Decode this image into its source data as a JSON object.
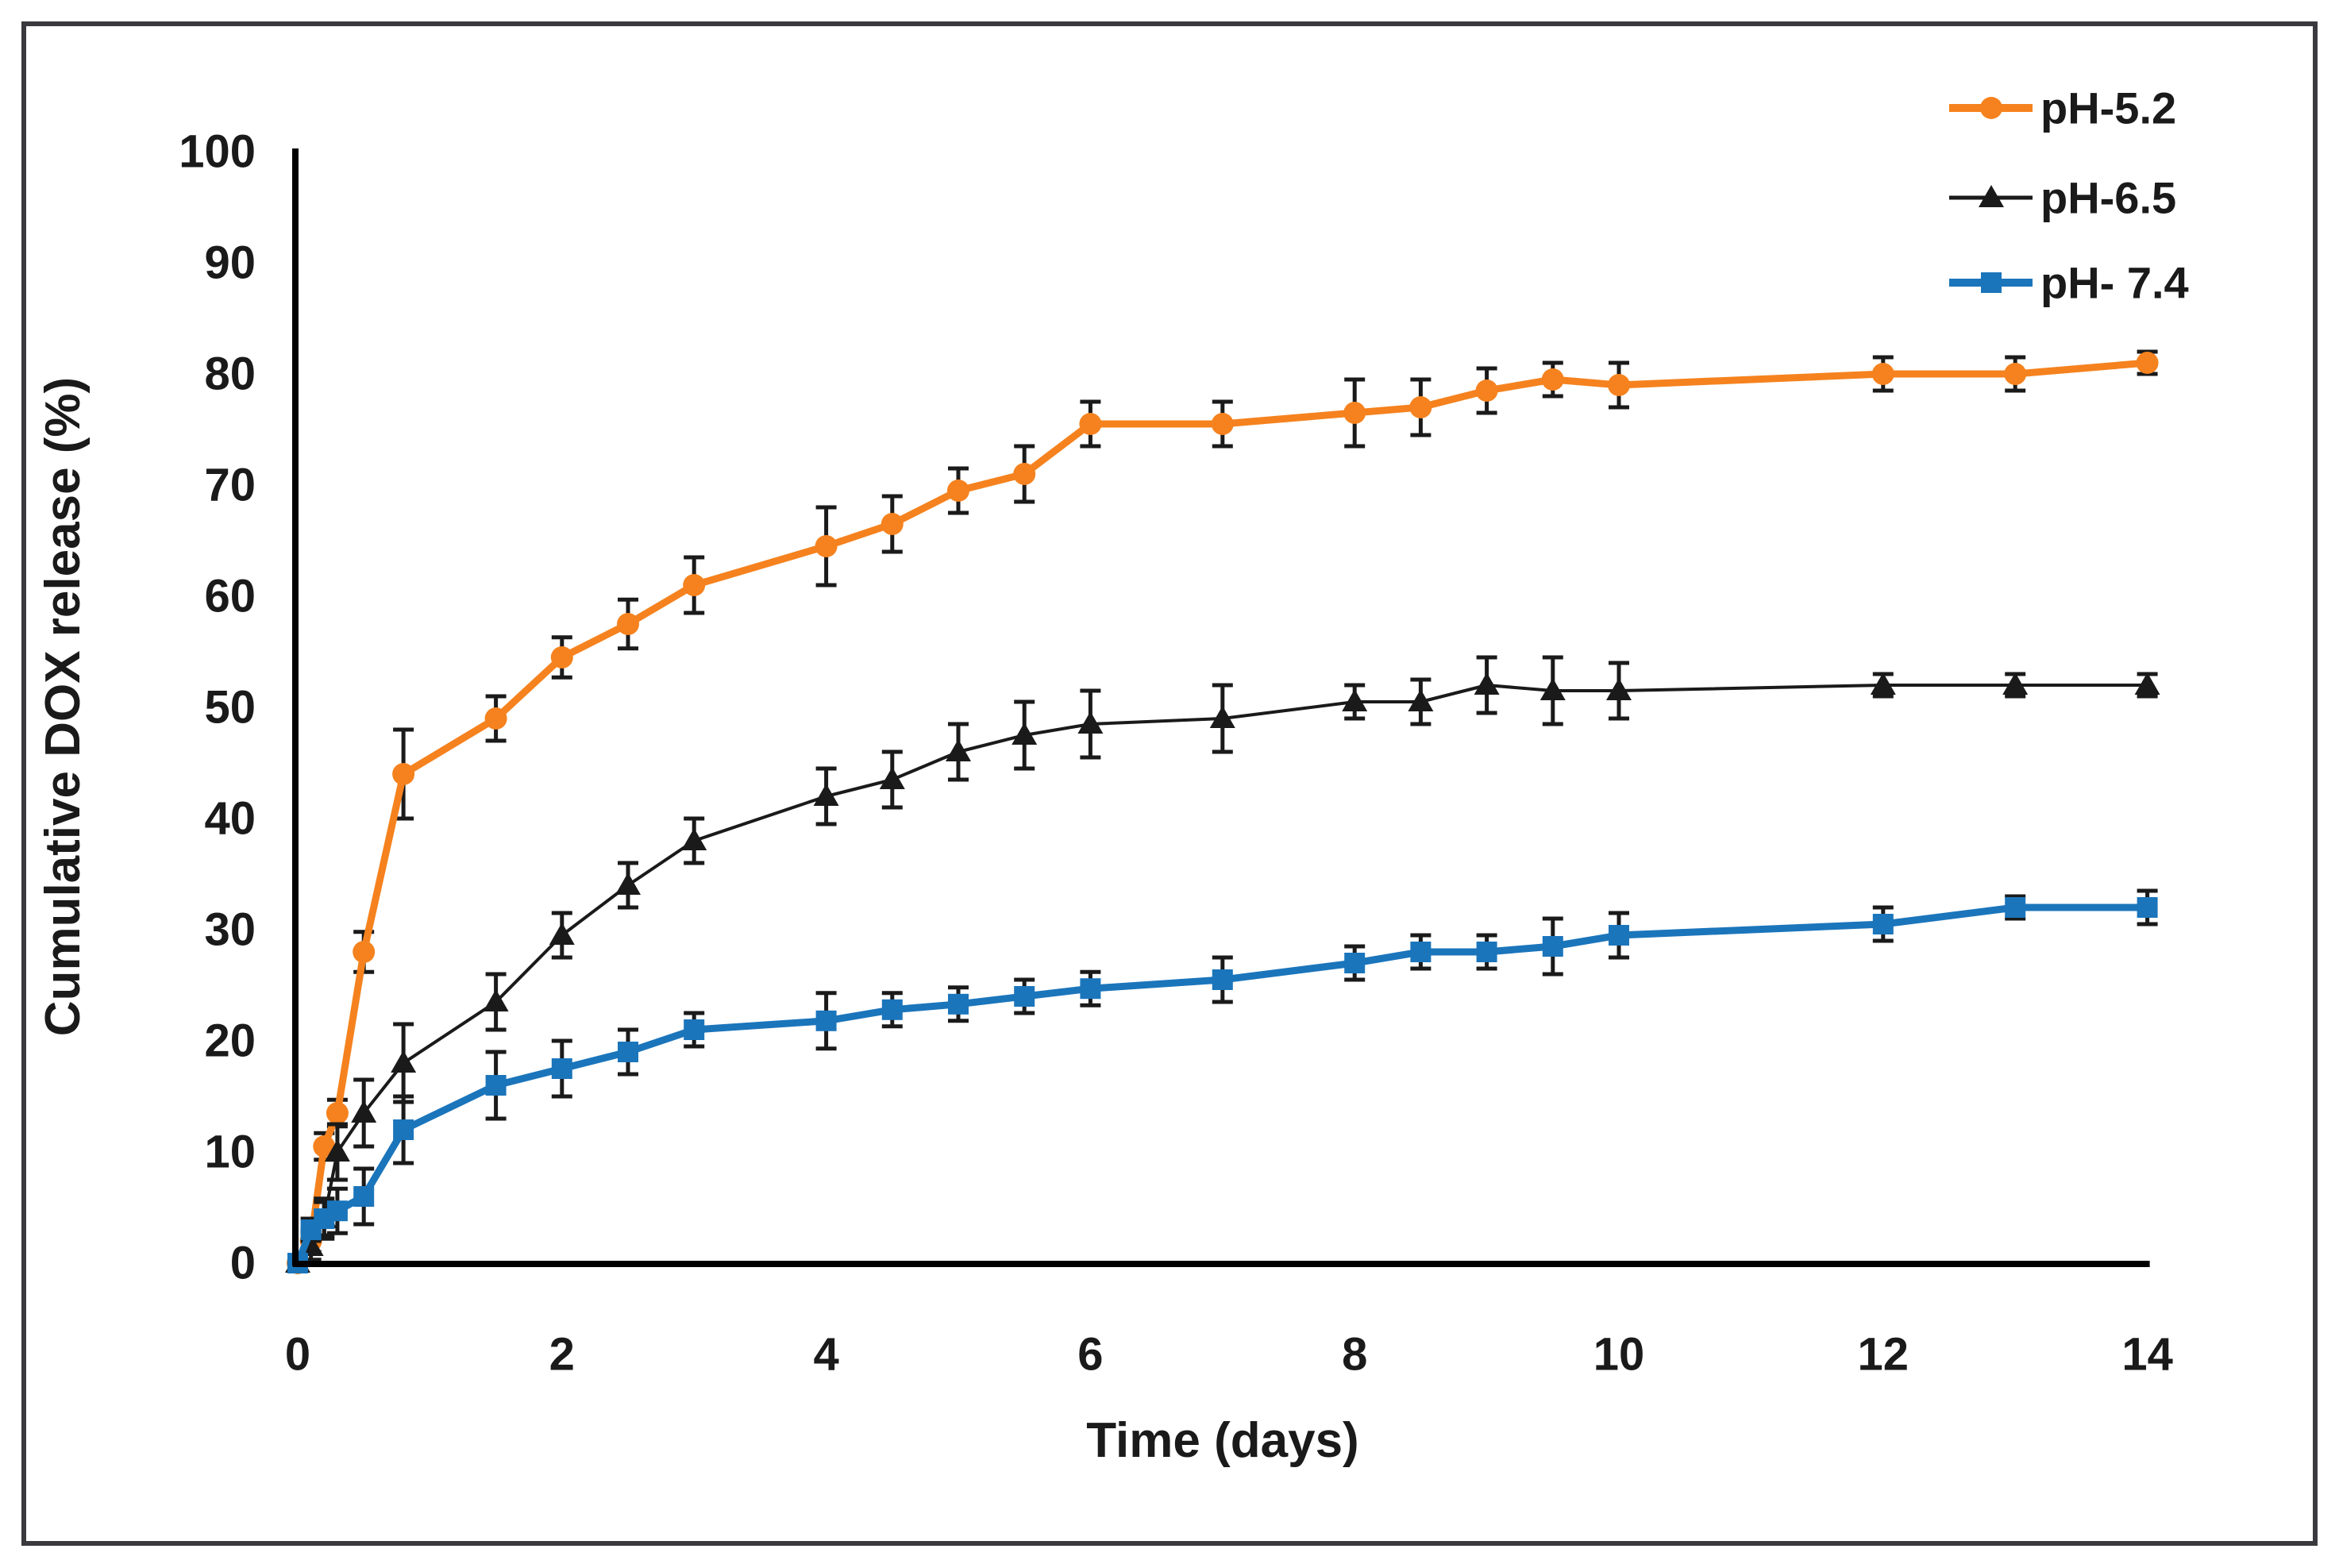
{
  "figure": {
    "background_color": "#ffffff",
    "frame_color": "#3a3a3e",
    "axis_color": "#000000",
    "error_bar_color": "#1a1a1a"
  },
  "chart_data": {
    "type": "line",
    "title": "",
    "xlabel": "Time (days)",
    "ylabel": "Cumulative DOX release (%)",
    "xlim": [
      0,
      14
    ],
    "ylim": [
      0,
      100
    ],
    "x_ticks": [
      0,
      2,
      4,
      6,
      8,
      10,
      12,
      14
    ],
    "y_ticks": [
      0,
      10,
      20,
      30,
      40,
      50,
      60,
      70,
      80,
      90,
      100
    ],
    "grid": false,
    "legend_position": "top-right",
    "error_bars": true,
    "x": [
      0,
      0.1,
      0.2,
      0.3,
      0.5,
      0.8,
      1.5,
      2,
      2.5,
      3,
      4,
      4.5,
      5,
      5.5,
      6,
      7,
      8,
      8.5,
      9,
      9.5,
      10,
      12,
      13,
      14
    ],
    "series": [
      {
        "name": "pH-5.2",
        "color": "#F5821E",
        "marker": "circle",
        "line_width": 9,
        "values": [
          0,
          2,
          10.5,
          13.5,
          28,
          44,
          49,
          54.5,
          57.5,
          61,
          64.5,
          66.5,
          69.5,
          71,
          75.5,
          75.5,
          76.5,
          77,
          78.5,
          79.5,
          79,
          80,
          80,
          81
        ],
        "errors": [
          0.5,
          1,
          1.2,
          1.2,
          1.8,
          4,
          2,
          1.8,
          2.2,
          2.5,
          3.5,
          2.5,
          2,
          2.5,
          2,
          2,
          3,
          2.5,
          2,
          1.5,
          2,
          1.5,
          1.5,
          1
        ]
      },
      {
        "name": "pH-6.5",
        "color": "#1a1a1a",
        "marker": "triangle",
        "line_width": 4,
        "values": [
          0,
          1.5,
          4,
          10,
          13.5,
          18,
          23.5,
          29.5,
          34,
          38,
          42,
          43.5,
          46,
          47.5,
          48.5,
          49,
          50.5,
          50.5,
          52,
          51.5,
          51.5,
          52,
          52,
          52
        ],
        "errors": [
          0.5,
          1.2,
          1.8,
          2.5,
          3,
          3.5,
          2.5,
          2,
          2,
          2,
          2.5,
          2.5,
          2.5,
          3,
          3,
          3,
          1.5,
          2,
          2.5,
          3,
          2.5,
          1,
          1,
          1
        ]
      },
      {
        "name": "pH- 7.4",
        "color": "#1B75BB",
        "marker": "square",
        "line_width": 9,
        "values": [
          0,
          3,
          4,
          4.7,
          6,
          12,
          16,
          17.5,
          19,
          21,
          21.8,
          22.8,
          23.3,
          24,
          24.7,
          25.5,
          27,
          28,
          28,
          28.5,
          29.5,
          30.5,
          32,
          32
        ],
        "errors": [
          0.5,
          1,
          1.5,
          2,
          2.5,
          3,
          3,
          2.5,
          2,
          1.5,
          2.5,
          1.5,
          1.5,
          1.5,
          1.5,
          2,
          1.5,
          1.5,
          1.5,
          2.5,
          2,
          1.5,
          1,
          1.5
        ]
      }
    ]
  }
}
